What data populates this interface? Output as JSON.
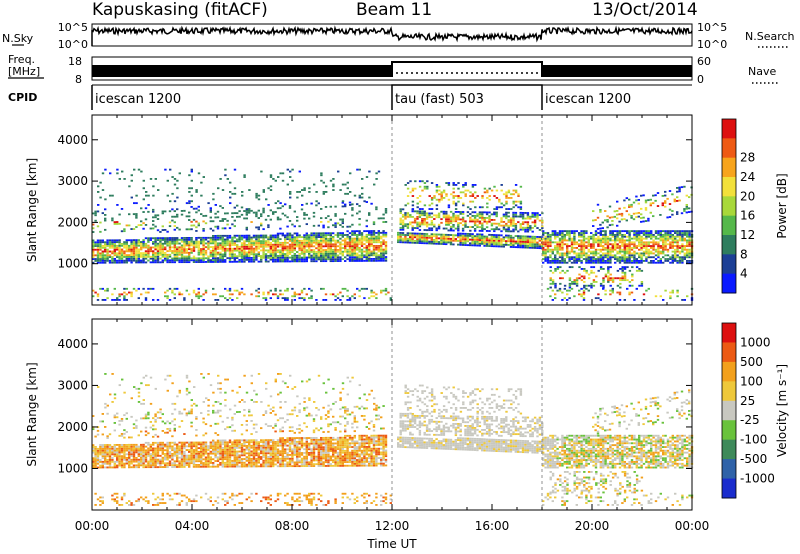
{
  "header": {
    "station": "Kapuskasing (fitACF)",
    "beam": "Beam 11",
    "date": "13/Oct/2014"
  },
  "panels": {
    "nsky": {
      "label": "N.Sky",
      "ticks": [
        "10^5",
        "10^0"
      ]
    },
    "nsearch": {
      "label": "N.Search",
      "ticks": [
        "10^5",
        "10^0"
      ]
    },
    "freq": {
      "label1": "Freq.",
      "label2": "[MHz]",
      "ticks": [
        "18",
        "8"
      ]
    },
    "nave": {
      "label": "Nave",
      "ticks": [
        "60",
        "0"
      ]
    },
    "cpid": {
      "label": "CPID"
    }
  },
  "cpid_segments": [
    {
      "label": "icescan 1200",
      "start": 0,
      "end": 12
    },
    {
      "label": "tau (fast) 503",
      "start": 12,
      "end": 18
    },
    {
      "label": "icescan 1200",
      "start": 18,
      "end": 24
    }
  ],
  "colors": {
    "power": [
      "#0a1aff",
      "#1c3f95",
      "#2e7d5e",
      "#55b84a",
      "#a8d83a",
      "#f2e03a",
      "#f7a41c",
      "#ee5a14",
      "#dd1010"
    ],
    "velocity": [
      "#1a2ccd",
      "#2f62a8",
      "#3e8a5a",
      "#69c23c",
      "#c8c8c0",
      "#eec83a",
      "#f2a01c",
      "#ec5a14",
      "#dd1010"
    ]
  },
  "chart_data": [
    {
      "type": "heatmap",
      "quantity": "Power",
      "ylabel": "Slant Range [km]",
      "ylim": [
        0,
        4600
      ],
      "yticks": [
        1000,
        2000,
        3000,
        4000
      ],
      "xlim": [
        0,
        24
      ],
      "colorbar": {
        "label": "Power [dB]",
        "ticks": [
          "4",
          "8",
          "12",
          "16",
          "20",
          "24",
          "28"
        ]
      }
    },
    {
      "type": "heatmap",
      "quantity": "Velocity",
      "ylabel": "Slant Range [km]",
      "ylabel_right": "Velocity [m s^-1]",
      "ylim": [
        0,
        4600
      ],
      "yticks": [
        1000,
        2000,
        3000,
        4000
      ],
      "xlim": [
        0,
        24
      ],
      "colorbar": {
        "label": "Velocity [m s⁻¹]",
        "ticks": [
          "1000",
          "500",
          "100",
          "25",
          "-25",
          "-100",
          "-500",
          "-1000"
        ]
      }
    }
  ],
  "xaxis": {
    "label": "Time UT",
    "ticks": [
      "00:00",
      "04:00",
      "08:00",
      "12:00",
      "16:00",
      "20:00",
      "00:00"
    ]
  }
}
